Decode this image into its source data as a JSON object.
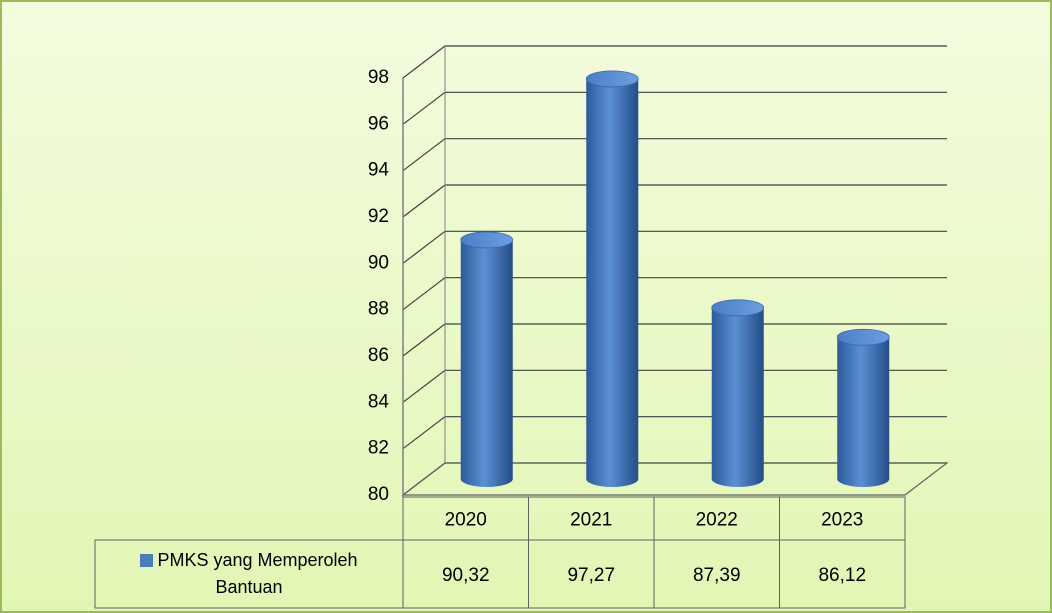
{
  "chart_data": {
    "type": "bar3d",
    "categories": [
      "2020",
      "2021",
      "2022",
      "2023"
    ],
    "series": [
      {
        "name": "PMKS yang Memperoleh Bantuan",
        "color": "#4a7ebb",
        "values": [
          90.32,
          97.27,
          87.39,
          86.12
        ],
        "value_labels": [
          "90,32",
          "97,27",
          "87,39",
          "86,12"
        ]
      }
    ],
    "ylim": [
      80,
      98
    ],
    "yticks": [
      80,
      82,
      84,
      86,
      88,
      90,
      92,
      94,
      96,
      98
    ],
    "grid": true,
    "data_table": true
  }
}
